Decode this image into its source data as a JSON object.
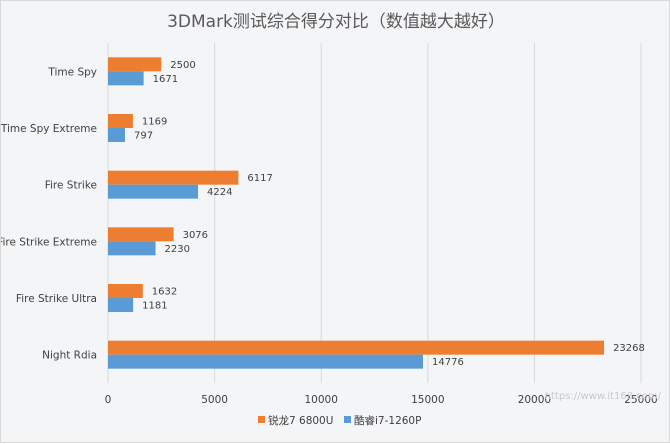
{
  "colors": {
    "series1": "#ED7D31",
    "series2": "#5B9BD5",
    "grid": "#d9d9d9",
    "background": "#f4f5f7"
  },
  "watermark": "https://www.it168.com/",
  "chart_data": {
    "type": "bar",
    "orientation": "horizontal",
    "title": "3DMark测试综合得分对比（数值越大越好）",
    "xlabel": "",
    "ylabel": "",
    "categories": [
      "Time Spy",
      "Time Spy Extreme",
      "Fire Strike",
      "Fire Strike Extreme",
      "Fire Strike Ultra",
      "Night Rdia"
    ],
    "series": [
      {
        "name": "锐龙7 6800U",
        "values": [
          2500,
          1169,
          6117,
          3076,
          1632,
          23268
        ]
      },
      {
        "name": "酷睿i7-1260P",
        "values": [
          1671,
          797,
          4224,
          2230,
          1181,
          14776
        ]
      }
    ],
    "xlim": [
      0,
      25000
    ],
    "xticks": [
      0,
      5000,
      10000,
      15000,
      20000,
      25000
    ],
    "grid": true,
    "legend_position": "bottom",
    "data_labels": true
  }
}
